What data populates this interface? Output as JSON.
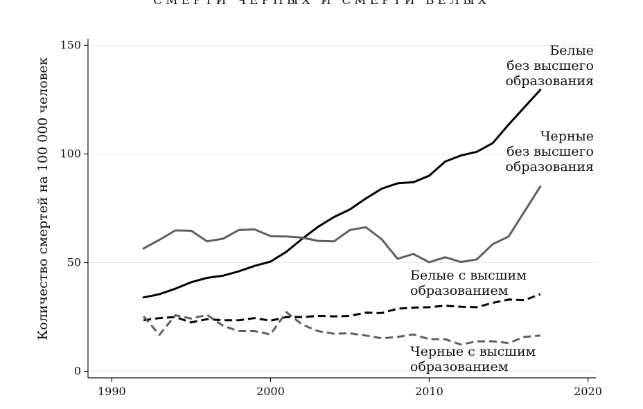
{
  "chart_data": {
    "type": "line",
    "title": "СМЕРТИ ЧЕРНЫХ И СМЕРТИ БЕЛЫХ",
    "xlabel": "",
    "ylabel": "Количество смертей на 100 000 человек",
    "xlim": [
      1988.5,
      2020.5
    ],
    "ylim": [
      -3,
      153
    ],
    "xticks": [
      "1990",
      "2000",
      "2010",
      "2020"
    ],
    "yticks": [
      "0",
      "50",
      "100",
      "150"
    ],
    "grid": true,
    "series": [
      {
        "name": "Белые без высшего образования",
        "label_lines": [
          "Белые",
          "без высшего",
          "образования"
        ],
        "color": "#000000",
        "dash": "solid",
        "x": [
          1992,
          1993,
          1994,
          1995,
          1996,
          1997,
          1998,
          1999,
          2000,
          2001,
          2002,
          2003,
          2004,
          2005,
          2006,
          2007,
          2008,
          2009,
          2010,
          2011,
          2012,
          2013,
          2014,
          2015,
          2016,
          2017
        ],
        "y": [
          34,
          35.5,
          38,
          41,
          43,
          44,
          46,
          48.5,
          50.5,
          55,
          61,
          66.5,
          71,
          74.5,
          79.5,
          84,
          86.5,
          87,
          90,
          96.5,
          99.3,
          101,
          105,
          113.5,
          121.5,
          129.5
        ]
      },
      {
        "name": "Черные без высшего образования",
        "label_lines": [
          "Черные",
          "без высшего",
          "образования"
        ],
        "color": "#5f5f5f",
        "dash": "solid",
        "x": [
          1992,
          1993,
          1994,
          1995,
          1996,
          1997,
          1998,
          1999,
          2000,
          2001,
          2002,
          2003,
          2004,
          2005,
          2006,
          2007,
          2008,
          2009,
          2010,
          2011,
          2012,
          2013,
          2014,
          2015,
          2016,
          2017
        ],
        "y": [
          56.5,
          60.5,
          64.8,
          64.7,
          59.8,
          61,
          65,
          65.3,
          62.2,
          62,
          61.5,
          60,
          59.8,
          65,
          66.3,
          60.8,
          51.8,
          54,
          50.2,
          52.5,
          50.3,
          51.5,
          58.5,
          62,
          73.5,
          85
        ]
      },
      {
        "name": "Белые с высшим образованием",
        "label_lines": [
          "Белые с высшим",
          "образованием"
        ],
        "color": "#000000",
        "dash": "long",
        "x": [
          1992,
          1993,
          1994,
          1995,
          1996,
          1997,
          1998,
          1999,
          2000,
          2001,
          2002,
          2003,
          2004,
          2005,
          2006,
          2007,
          2008,
          2009,
          2010,
          2011,
          2012,
          2013,
          2014,
          2015,
          2016,
          2017
        ],
        "y": [
          23.5,
          24.5,
          25,
          22.5,
          24,
          23.5,
          23.5,
          24.5,
          23.3,
          25,
          25,
          25.5,
          25.3,
          25.5,
          27,
          26.8,
          28.8,
          29.3,
          29.5,
          30.2,
          29.7,
          29.5,
          31.5,
          33,
          32.8,
          35.5
        ]
      },
      {
        "name": "Черные с высшим образованием",
        "label_lines": [
          "Черные с высшим",
          "образованием"
        ],
        "color": "#5f5f5f",
        "dash": "long",
        "x": [
          1992,
          1993,
          1994,
          1995,
          1996,
          1997,
          1998,
          1999,
          2000,
          2001,
          2002,
          2003,
          2004,
          2005,
          2006,
          2007,
          2008,
          2009,
          2010,
          2011,
          2012,
          2013,
          2014,
          2015,
          2016,
          2017
        ],
        "y": [
          25.3,
          16.8,
          25.8,
          24.3,
          26,
          21,
          18.5,
          18.5,
          17,
          27.2,
          21.5,
          18.5,
          17.3,
          17.5,
          16.5,
          15.2,
          15.8,
          17,
          14.8,
          14.8,
          12.3,
          13.8,
          13.8,
          13,
          15.8,
          16.5
        ]
      }
    ]
  }
}
